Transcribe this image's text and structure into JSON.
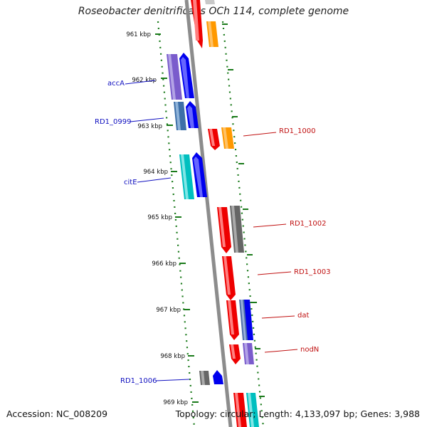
{
  "title": "Roseobacter denitrificans OCh 114, complete genome",
  "footer": {
    "accession": "Accession: NC_008209",
    "summary": "Topology: circular; Length: 4,133,097 bp; Genes: 3,988"
  },
  "colors": {
    "tick": "#1a7a1a",
    "backbone": "#8c8c8c",
    "left_label": "#1010c0",
    "right_label": "#c01010"
  },
  "ticks": [
    {
      "label": "961 kbp"
    },
    {
      "label": "962 kbp"
    },
    {
      "label": "963 kbp"
    },
    {
      "label": "964 kbp"
    },
    {
      "label": "965 kbp"
    },
    {
      "label": "966 kbp"
    },
    {
      "label": "967 kbp"
    },
    {
      "label": "968 kbp"
    },
    {
      "label": "969 kbp"
    }
  ],
  "gene_labels_left": [
    "accA",
    "RD1_0999",
    "citE",
    "RD1_1006"
  ],
  "gene_labels_right": [
    "RD1_1000",
    "RD1_1002",
    "RD1_1003",
    "dat",
    "nodN"
  ]
}
